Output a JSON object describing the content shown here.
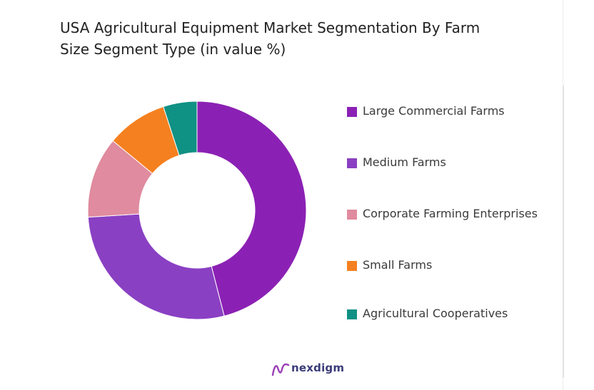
{
  "chart_data": {
    "type": "pie",
    "title": "USA Agricultural Equipment Market Segmentation By Farm Size Segment Type (in value %)",
    "title_lines": [
      "USA Agricultural Equipment Market Segmentation By Farm",
      "Size Segment Type (in value %)"
    ],
    "donut": true,
    "legend_position": "right",
    "categories": [
      "Large Commercial Farms",
      "Medium Farms",
      "Corporate Farming Enterprises",
      "Small Farms",
      "Agricultural Cooperatives"
    ],
    "values": [
      46,
      28,
      12,
      9,
      5
    ],
    "colors": [
      "#8b21b4",
      "#8a40c3",
      "#e08b9f",
      "#f5801f",
      "#0f9184"
    ]
  },
  "branding": {
    "logo_text": "nexdigm",
    "logo_color": "#3b3b7a"
  }
}
